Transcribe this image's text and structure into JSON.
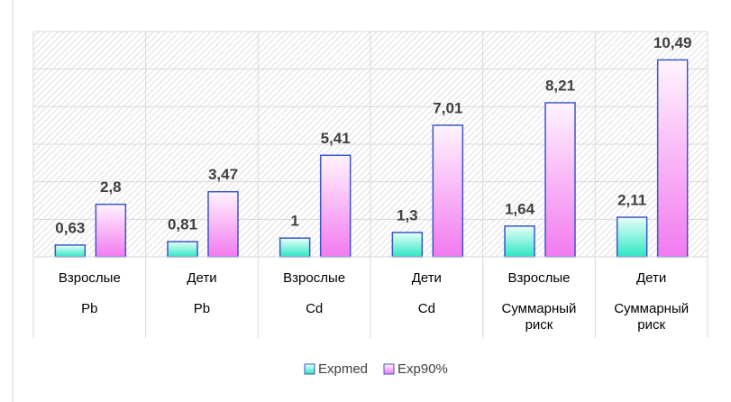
{
  "chart_data": {
    "type": "bar",
    "categories": [
      "Взрослые",
      "Дети",
      "Взрослые",
      "Дети",
      "Взрослые",
      "Дети"
    ],
    "groups": [
      "Pb",
      "Pb",
      "Cd",
      "Cd",
      "Суммарный риск",
      "Суммарный риск"
    ],
    "series": [
      {
        "name": "Expmed",
        "color": "#2ee6c4",
        "values": [
          0.63,
          0.81,
          1,
          1.3,
          1.64,
          2.11
        ],
        "value_labels": [
          "0,63",
          "0,81",
          "1",
          "1,3",
          "1,64",
          "2,11"
        ]
      },
      {
        "name": "Exp90%",
        "color": "#f27af0",
        "values": [
          2.8,
          3.47,
          5.41,
          7.01,
          8.21,
          10.49
        ],
        "value_labels": [
          "2,8",
          "3,47",
          "5,41",
          "7,01",
          "8,21",
          "10,49"
        ]
      }
    ],
    "ylim": [
      0,
      12
    ],
    "yticks": [
      0,
      2,
      4,
      6,
      8,
      10,
      12
    ],
    "grid": true,
    "legend": "bottom"
  }
}
